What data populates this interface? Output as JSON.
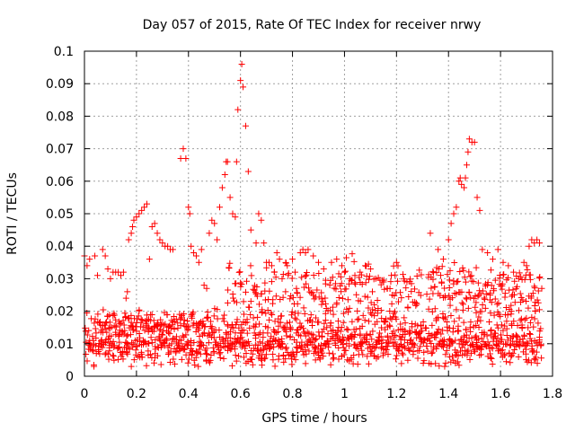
{
  "chart_data": {
    "type": "scatter",
    "title": "Day 057 of 2015, Rate Of TEC Index for receiver nrwy",
    "xlabel": "GPS time / hours",
    "ylabel": "ROTI / TECUs",
    "xlim": [
      0,
      1.8
    ],
    "ylim": [
      0,
      0.1
    ],
    "xticks": [
      "0",
      "0.2",
      "0.4",
      "0.6",
      "0.8",
      "1",
      "1.2",
      "1.4",
      "1.6",
      "1.8"
    ],
    "yticks": [
      "0",
      "0.01",
      "0.02",
      "0.03",
      "0.04",
      "0.05",
      "0.06",
      "0.07",
      "0.08",
      "0.09",
      "0.1"
    ],
    "grid": true,
    "marker": "+",
    "color": "#ff0000",
    "series": [
      {
        "name": "ROTI",
        "points": [
          [
            0.0,
            0.037
          ],
          [
            0.01,
            0.034
          ],
          [
            0.02,
            0.036
          ],
          [
            0.04,
            0.037
          ],
          [
            0.05,
            0.031
          ],
          [
            0.07,
            0.039
          ],
          [
            0.08,
            0.037
          ],
          [
            0.09,
            0.033
          ],
          [
            0.1,
            0.03
          ],
          [
            0.11,
            0.032
          ],
          [
            0.12,
            0.032
          ],
          [
            0.13,
            0.032
          ],
          [
            0.14,
            0.031
          ],
          [
            0.15,
            0.032
          ],
          [
            0.16,
            0.024
          ],
          [
            0.165,
            0.026
          ],
          [
            0.17,
            0.042
          ],
          [
            0.18,
            0.044
          ],
          [
            0.185,
            0.046
          ],
          [
            0.19,
            0.048
          ],
          [
            0.2,
            0.049
          ],
          [
            0.21,
            0.05
          ],
          [
            0.22,
            0.051
          ],
          [
            0.23,
            0.052
          ],
          [
            0.24,
            0.053
          ],
          [
            0.25,
            0.036
          ],
          [
            0.26,
            0.046
          ],
          [
            0.27,
            0.047
          ],
          [
            0.28,
            0.044
          ],
          [
            0.29,
            0.042
          ],
          [
            0.3,
            0.041
          ],
          [
            0.31,
            0.04
          ],
          [
            0.32,
            0.04
          ],
          [
            0.33,
            0.039
          ],
          [
            0.34,
            0.039
          ],
          [
            0.37,
            0.067
          ],
          [
            0.38,
            0.07
          ],
          [
            0.39,
            0.067
          ],
          [
            0.4,
            0.052
          ],
          [
            0.405,
            0.05
          ],
          [
            0.41,
            0.04
          ],
          [
            0.42,
            0.038
          ],
          [
            0.43,
            0.037
          ],
          [
            0.44,
            0.035
          ],
          [
            0.45,
            0.039
          ],
          [
            0.46,
            0.028
          ],
          [
            0.47,
            0.027
          ],
          [
            0.48,
            0.044
          ],
          [
            0.49,
            0.048
          ],
          [
            0.5,
            0.047
          ],
          [
            0.51,
            0.042
          ],
          [
            0.52,
            0.052
          ],
          [
            0.53,
            0.058
          ],
          [
            0.54,
            0.062
          ],
          [
            0.545,
            0.066
          ],
          [
            0.55,
            0.066
          ],
          [
            0.56,
            0.055
          ],
          [
            0.57,
            0.05
          ],
          [
            0.58,
            0.049
          ],
          [
            0.585,
            0.066
          ],
          [
            0.59,
            0.082
          ],
          [
            0.6,
            0.091
          ],
          [
            0.605,
            0.096
          ],
          [
            0.61,
            0.089
          ],
          [
            0.62,
            0.077
          ],
          [
            0.63,
            0.063
          ],
          [
            0.64,
            0.045
          ],
          [
            0.66,
            0.041
          ],
          [
            0.67,
            0.05
          ],
          [
            0.68,
            0.048
          ],
          [
            0.69,
            0.041
          ],
          [
            0.7,
            0.035
          ],
          [
            0.71,
            0.035
          ],
          [
            0.72,
            0.034
          ],
          [
            0.73,
            0.032
          ],
          [
            0.74,
            0.038
          ],
          [
            0.75,
            0.036
          ],
          [
            0.76,
            0.03
          ],
          [
            0.78,
            0.034
          ],
          [
            0.8,
            0.036
          ],
          [
            0.81,
            0.032
          ],
          [
            0.83,
            0.038
          ],
          [
            0.84,
            0.039
          ],
          [
            0.85,
            0.038
          ],
          [
            0.86,
            0.039
          ],
          [
            0.88,
            0.037
          ],
          [
            0.9,
            0.035
          ],
          [
            0.92,
            0.033
          ],
          [
            0.95,
            0.035
          ],
          [
            0.97,
            0.036
          ],
          [
            0.99,
            0.034
          ],
          [
            1.0,
            0.032
          ],
          [
            1.02,
            0.03
          ],
          [
            1.04,
            0.031
          ],
          [
            1.06,
            0.032
          ],
          [
            1.08,
            0.034
          ],
          [
            1.1,
            0.033
          ],
          [
            1.12,
            0.03
          ],
          [
            1.15,
            0.029
          ],
          [
            1.18,
            0.031
          ],
          [
            1.2,
            0.035
          ],
          [
            1.33,
            0.044
          ],
          [
            1.36,
            0.039
          ],
          [
            1.38,
            0.036
          ],
          [
            1.4,
            0.042
          ],
          [
            1.41,
            0.047
          ],
          [
            1.42,
            0.05
          ],
          [
            1.43,
            0.052
          ],
          [
            1.44,
            0.06
          ],
          [
            1.445,
            0.061
          ],
          [
            1.45,
            0.059
          ],
          [
            1.46,
            0.058
          ],
          [
            1.465,
            0.061
          ],
          [
            1.47,
            0.065
          ],
          [
            1.475,
            0.069
          ],
          [
            1.48,
            0.073
          ],
          [
            1.49,
            0.072
          ],
          [
            1.5,
            0.072
          ],
          [
            1.51,
            0.055
          ],
          [
            1.52,
            0.051
          ],
          [
            1.53,
            0.039
          ],
          [
            1.55,
            0.038
          ],
          [
            1.57,
            0.036
          ],
          [
            1.59,
            0.039
          ],
          [
            1.61,
            0.035
          ],
          [
            1.63,
            0.034
          ],
          [
            1.65,
            0.032
          ],
          [
            1.67,
            0.03
          ],
          [
            1.69,
            0.035
          ],
          [
            1.7,
            0.034
          ],
          [
            1.71,
            0.04
          ],
          [
            1.72,
            0.042
          ],
          [
            1.73,
            0.041
          ],
          [
            1.74,
            0.042
          ],
          [
            1.75,
            0.041
          ]
        ]
      }
    ],
    "dense_bands": [
      {
        "x_from": 0.0,
        "x_to": 1.76,
        "y_center": 0.0095,
        "y_spread": 0.007,
        "count": 900
      },
      {
        "x_from": 0.0,
        "x_to": 1.76,
        "y_center": 0.016,
        "y_spread": 0.006,
        "count": 280
      },
      {
        "x_from": 0.55,
        "x_to": 1.3,
        "y_center": 0.026,
        "y_spread": 0.012,
        "count": 220
      },
      {
        "x_from": 1.32,
        "x_to": 1.76,
        "y_center": 0.026,
        "y_spread": 0.01,
        "count": 160
      },
      {
        "x_from": 0.05,
        "x_to": 0.5,
        "y_center": 0.017,
        "y_spread": 0.004,
        "count": 80
      }
    ]
  }
}
